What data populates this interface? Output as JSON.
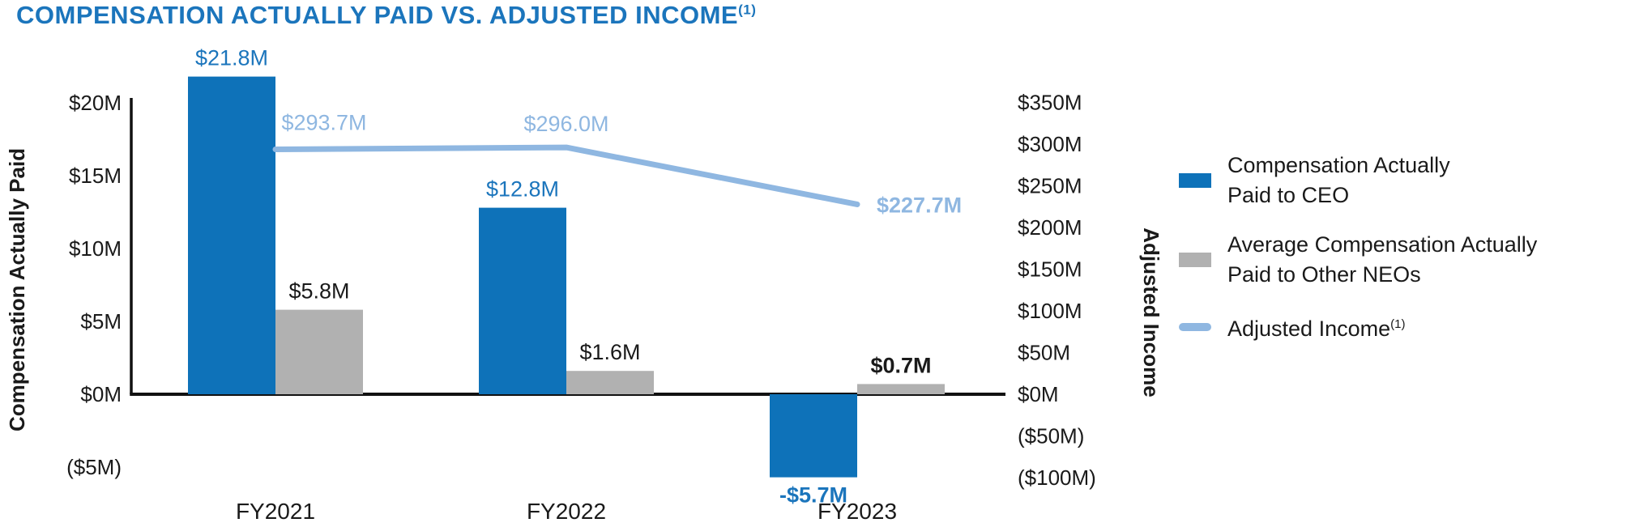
{
  "title": {
    "text": "COMPENSATION ACTUALLY PAID VS. ADJUSTED INCOME",
    "superscript": "(1)"
  },
  "colors": {
    "title_blue": "#1b75bc",
    "ceo_blue": "#0e72b9",
    "neo_gray": "#b1b1b1",
    "line_blue": "#8fb7e1",
    "axis_black": "#111111",
    "text_black": "#1a1a1a"
  },
  "chart_data": {
    "type": "bar+line dual-axis combo",
    "categories": [
      "FY2021",
      "FY2022",
      "FY2023"
    ],
    "series": [
      {
        "name": "Compensation Actually Paid to CEO",
        "type": "bar",
        "axis": "left",
        "values": [
          21.8,
          12.8,
          -5.7
        ],
        "labels": [
          "$21.8M",
          "$12.8M",
          "-$5.7M"
        ],
        "label_bold": [
          false,
          false,
          true
        ],
        "color_key": "ceo_blue",
        "label_color_key": "title_blue"
      },
      {
        "name": "Average Compensation Actually Paid to Other NEOs",
        "type": "bar",
        "axis": "left",
        "values": [
          5.8,
          1.6,
          0.7
        ],
        "labels": [
          "$5.8M",
          "$1.6M",
          "$0.7M"
        ],
        "label_bold": [
          false,
          false,
          true
        ],
        "color_key": "neo_gray",
        "label_color_key": "text_black"
      },
      {
        "name": "Adjusted Income",
        "type": "line",
        "axis": "right",
        "values": [
          293.7,
          296.0,
          227.7
        ],
        "labels": [
          "$293.7M",
          "$296.0M",
          "$227.7M"
        ],
        "label_bold": [
          false,
          false,
          true
        ],
        "color_key": "line_blue",
        "label_color_key": "line_blue"
      }
    ],
    "left_axis": {
      "label": "Compensation Actually Paid",
      "range": [
        -5,
        20
      ],
      "ticks": [
        {
          "v": 20,
          "t": "$20M"
        },
        {
          "v": 15,
          "t": "$15M"
        },
        {
          "v": 10,
          "t": "$10M"
        },
        {
          "v": 5,
          "t": "$5M"
        },
        {
          "v": 0,
          "t": "$0M"
        },
        {
          "v": -5,
          "t": "($5M)"
        }
      ]
    },
    "right_axis": {
      "label": "Adjusted Income",
      "range": [
        -100,
        350
      ],
      "ticks": [
        {
          "v": 350,
          "t": "$350M"
        },
        {
          "v": 300,
          "t": "$300M"
        },
        {
          "v": 250,
          "t": "$250M"
        },
        {
          "v": 200,
          "t": "$200M"
        },
        {
          "v": 150,
          "t": "$150M"
        },
        {
          "v": 100,
          "t": "$100M"
        },
        {
          "v": 50,
          "t": "$50M"
        },
        {
          "v": 0,
          "t": "$0M"
        },
        {
          "v": -50,
          "t": "($50M)"
        },
        {
          "v": -100,
          "t": "($100M)"
        }
      ]
    },
    "grid": false,
    "legend_position": "right"
  },
  "legend": {
    "items": [
      {
        "line1": "Compensation Actually",
        "line2": "Paid to CEO",
        "swatch": "ceo_blue",
        "shape": "rect"
      },
      {
        "line1": "Average Compensation Actually",
        "line2": "Paid to Other NEOs",
        "swatch": "neo_gray",
        "shape": "rect"
      },
      {
        "line1": "Adjusted Income",
        "superscript": "(1)",
        "swatch": "line_blue",
        "shape": "line"
      }
    ]
  }
}
